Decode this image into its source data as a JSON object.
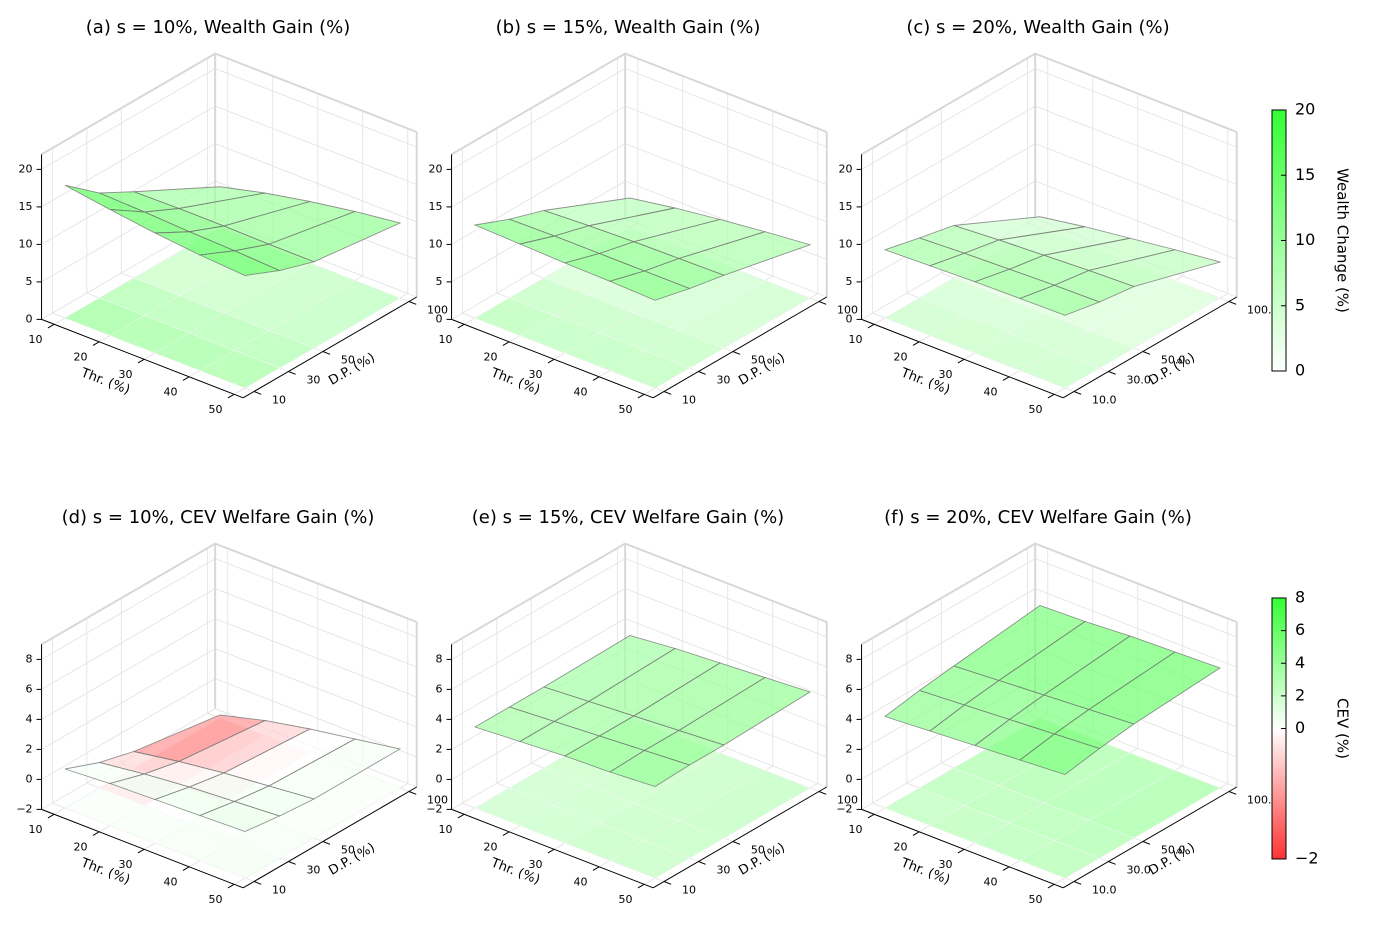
{
  "chart_data": [
    {
      "type": "surface",
      "title": "(a) s = 10%, Wealth Gain (%)",
      "x_label": "Thr. (%)",
      "y_label": "D.P. (%)",
      "x": [
        10,
        20,
        30,
        40,
        50
      ],
      "y": [
        10,
        30,
        50,
        100
      ],
      "values": [
        [
          17.7,
          16.8,
          16.0,
          15.4,
          15.0
        ],
        [
          14.0,
          13.8,
          13.5,
          13.3,
          13.0
        ],
        [
          11.5,
          11.6,
          11.6,
          11.5,
          11.5
        ],
        [
          5.5,
          7.0,
          8.2,
          9.2,
          10.0
        ]
      ],
      "xlim": [
        10,
        50
      ],
      "ylim": [
        10,
        100
      ],
      "zlim": [
        0,
        20
      ],
      "xticks": [
        10,
        20,
        30,
        40,
        50
      ],
      "yticks": [
        10,
        30,
        50,
        100
      ],
      "zticks": [
        0,
        5,
        10,
        15,
        20
      ]
    },
    {
      "type": "surface",
      "title": "(b) s = 15%, Wealth Gain (%)",
      "x_label": "Thr. (%)",
      "y_label": "D.P. (%)",
      "x": [
        10,
        20,
        30,
        40,
        50
      ],
      "y": [
        10,
        30,
        50,
        100
      ],
      "values": [
        [
          12.4,
          12.2,
          12.0,
          11.9,
          11.7
        ],
        [
          10.5,
          10.6,
          10.6,
          10.6,
          10.6
        ],
        [
          9.0,
          9.3,
          9.5,
          9.6,
          9.7
        ],
        [
          4.0,
          5.0,
          5.8,
          6.5,
          7.1
        ]
      ],
      "xlim": [
        10,
        50
      ],
      "ylim": [
        10,
        100
      ],
      "zlim": [
        0,
        20
      ],
      "xticks": [
        10,
        20,
        30,
        40,
        50
      ],
      "yticks": [
        10,
        30,
        50,
        100
      ],
      "zticks": [
        0,
        5,
        10,
        15,
        20
      ]
    },
    {
      "type": "surface",
      "title": "(c) s = 20%, Wealth Gain (%)",
      "x_label": "Thr. (%)",
      "y_label": "D.P. (%)",
      "x": [
        10,
        20,
        30,
        40,
        50
      ],
      "y": [
        10,
        30,
        50,
        100
      ],
      "values": [
        [
          9.1,
          9.3,
          9.5,
          9.6,
          9.7
        ],
        [
          8.0,
          8.3,
          8.5,
          8.7,
          8.8
        ],
        [
          7.0,
          7.4,
          7.7,
          8.0,
          8.2
        ],
        [
          1.5,
          2.5,
          3.3,
          4.1,
          4.8
        ]
      ],
      "xlim": [
        10,
        50
      ],
      "ylim": [
        10,
        100
      ],
      "zlim": [
        0,
        20
      ],
      "xticks": [
        10,
        20,
        30,
        40,
        50
      ],
      "yticks": [
        {
          "value": 10,
          "label": "10.0"
        },
        {
          "value": 30,
          "label": "30.0"
        },
        {
          "value": 50,
          "label": "50.0"
        },
        {
          "value": 100,
          "label": "100.0"
        }
      ],
      "zticks": [
        0,
        5,
        10,
        15,
        20
      ]
    },
    {
      "type": "surface",
      "title": "(d) s = 10%, CEV Welfare Gain (%)",
      "x_label": "Thr. (%)",
      "y_label": "D.P. (%)",
      "x": [
        10,
        20,
        30,
        40,
        50
      ],
      "y": [
        10,
        30,
        50,
        100
      ],
      "values": [
        [
          0.6,
          0.8,
          0.9,
          1.0,
          1.1
        ],
        [
          -0.3,
          0.1,
          0.4,
          0.6,
          0.8
        ],
        [
          -0.9,
          -0.4,
          0.0,
          0.3,
          0.6
        ],
        [
          -1.8,
          -1.0,
          -0.4,
          0.1,
          0.6
        ]
      ],
      "xlim": [
        10,
        50
      ],
      "ylim": [
        10,
        100
      ],
      "zlim": [
        -2,
        8
      ],
      "xticks": [
        10,
        20,
        30,
        40,
        50
      ],
      "yticks": [
        10,
        30,
        50,
        100
      ],
      "zticks": [
        {
          "value": -2,
          "label": "−2"
        },
        0,
        2,
        4,
        6,
        8
      ]
    },
    {
      "type": "surface",
      "title": "(e) s = 15%, CEV Welfare Gain (%)",
      "x_label": "Thr. (%)",
      "y_label": "D.P. (%)",
      "x": [
        10,
        20,
        30,
        40,
        50
      ],
      "y": [
        10,
        30,
        50,
        100
      ],
      "values": [
        [
          3.4,
          3.6,
          3.8,
          3.9,
          4.1
        ],
        [
          3.4,
          3.6,
          3.8,
          4.0,
          4.2
        ],
        [
          3.4,
          3.6,
          3.8,
          4.0,
          4.2
        ],
        [
          3.5,
          3.8,
          4.0,
          4.2,
          4.4
        ]
      ],
      "xlim": [
        10,
        50
      ],
      "ylim": [
        10,
        100
      ],
      "zlim": [
        -2,
        8
      ],
      "xticks": [
        10,
        20,
        30,
        40,
        50
      ],
      "yticks": [
        10,
        30,
        50,
        100
      ],
      "zticks": [
        {
          "value": -2,
          "label": "−2"
        },
        0,
        2,
        4,
        6,
        8
      ]
    },
    {
      "type": "surface",
      "title": "(f) s = 20%, CEV Welfare Gain (%)",
      "x_label": "Thr. (%)",
      "y_label": "D.P. (%)",
      "x": [
        10,
        20,
        30,
        40,
        50
      ],
      "y": [
        10,
        30,
        50,
        100
      ],
      "values": [
        [
          4.1,
          4.3,
          4.5,
          4.7,
          4.9
        ],
        [
          4.5,
          4.7,
          4.9,
          5.1,
          5.3
        ],
        [
          4.8,
          5.0,
          5.2,
          5.4,
          5.6
        ],
        [
          5.5,
          5.6,
          5.8,
          5.9,
          6.0
        ]
      ],
      "xlim": [
        10,
        50
      ],
      "ylim": [
        10,
        100
      ],
      "zlim": [
        -2,
        8
      ],
      "xticks": [
        10,
        20,
        30,
        40,
        50
      ],
      "yticks": [
        {
          "value": 10,
          "label": "10.0"
        },
        {
          "value": 30,
          "label": "30.0"
        },
        {
          "value": 50,
          "label": "50.0"
        },
        {
          "value": 100,
          "label": "100.0"
        }
      ],
      "zticks": [
        {
          "value": -2,
          "label": "−2"
        },
        0,
        2,
        4,
        6,
        8
      ]
    },
    {
      "type": "colorbar",
      "label": "Wealth Change (%)",
      "lim": [
        0,
        20
      ],
      "colors": [
        "#ffffff",
        "#33ff33"
      ],
      "ticks": [
        0,
        5,
        10,
        15,
        20
      ]
    },
    {
      "type": "colorbar",
      "label": "CEV (%)",
      "lim": [
        -2,
        8
      ],
      "center": 0,
      "colors": [
        "#ff3333",
        "#ffffff",
        "#33ff33"
      ],
      "ticks": [
        {
          "value": -2,
          "label": "−2"
        },
        0,
        2,
        4,
        6,
        8
      ]
    }
  ]
}
